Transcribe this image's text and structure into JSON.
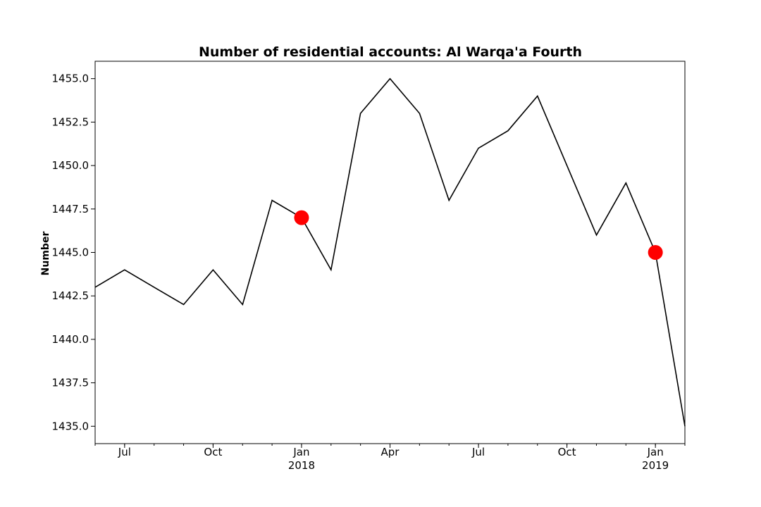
{
  "chart_data": {
    "type": "line",
    "title": "Number of residential accounts: Al Warqa'a Fourth",
    "xlabel": "",
    "ylabel": "Number",
    "x": [
      "2017-06",
      "2017-07",
      "2017-08",
      "2017-09",
      "2017-10",
      "2017-11",
      "2017-12",
      "2018-01",
      "2018-02",
      "2018-03",
      "2018-04",
      "2018-05",
      "2018-06",
      "2018-07",
      "2018-08",
      "2018-09",
      "2018-10",
      "2018-11",
      "2018-12",
      "2019-01",
      "2019-02"
    ],
    "series": [
      {
        "values": [
          1443,
          1444,
          1443,
          1442,
          1444,
          1442,
          1448,
          1447,
          1444,
          1453,
          1455,
          1453,
          1448,
          1451,
          1452,
          1454,
          1450,
          1446,
          1449,
          1445,
          1435
        ],
        "color": "#000000"
      }
    ],
    "highlights": [
      {
        "x": "2018-01",
        "y": 1447,
        "color": "#ff0000"
      },
      {
        "x": "2019-01",
        "y": 1445,
        "color": "#ff0000"
      }
    ],
    "ylim": [
      1434,
      1456
    ],
    "yticks": [
      "1435.0",
      "1437.5",
      "1440.0",
      "1442.5",
      "1445.0",
      "1447.5",
      "1450.0",
      "1452.5",
      "1455.0"
    ],
    "xticks": [
      {
        "x": "2017-07",
        "label": "Jul"
      },
      {
        "x": "2017-10",
        "label": "Oct"
      },
      {
        "x": "2018-01",
        "label": "Jan",
        "sublabel": "2018"
      },
      {
        "x": "2018-04",
        "label": "Apr"
      },
      {
        "x": "2018-07",
        "label": "Jul"
      },
      {
        "x": "2018-10",
        "label": "Oct"
      },
      {
        "x": "2019-01",
        "label": "Jan",
        "sublabel": "2019"
      }
    ],
    "grid": false,
    "legend": "none"
  }
}
